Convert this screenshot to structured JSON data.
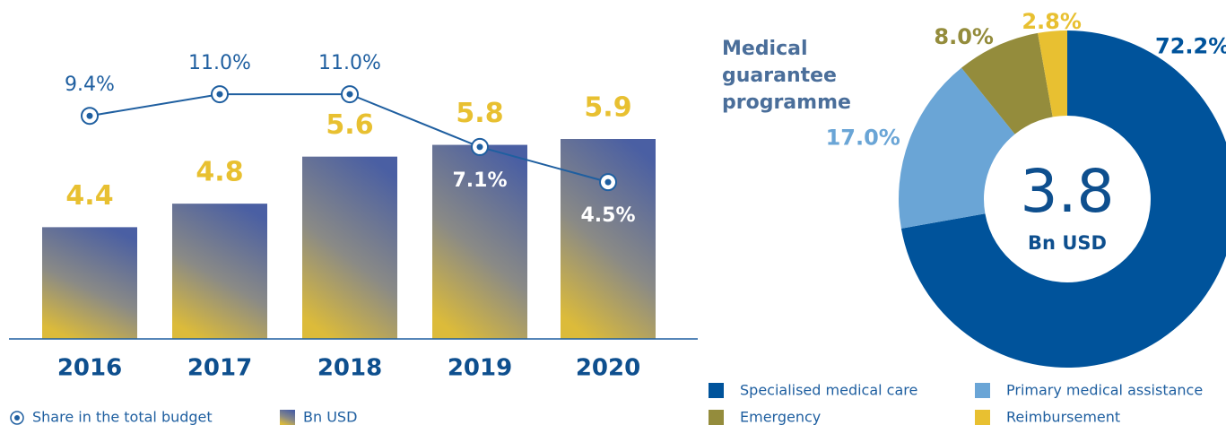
{
  "chart_data": [
    {
      "type": "bar-line",
      "categories": [
        "2016",
        "2017",
        "2018",
        "2019",
        "2020"
      ],
      "series": [
        {
          "name": "Bn USD",
          "color": "#e8c031",
          "values": [
            4.4,
            4.8,
            5.6,
            5.8,
            5.9
          ]
        },
        {
          "name": "Share in the total budget",
          "color": "#1f5fa0",
          "axis": "y2",
          "values": [
            9.4,
            11.0,
            11.0,
            7.1,
            4.5
          ],
          "value_labels": [
            "9.4%",
            "11.0%",
            "11.0%",
            "7.1%",
            "4.5%"
          ]
        }
      ],
      "ylim": [
        2.5,
        6.0
      ],
      "y2lim": [
        0,
        12
      ]
    },
    {
      "type": "donut",
      "title": "Medical guarantee programme",
      "center_value": "3.8",
      "center_label": "Bn USD",
      "categories": [
        "Specialised medical care",
        "Primary medical assistance",
        "Emergency",
        "Reimbursement"
      ],
      "values": [
        72.2,
        17.0,
        8.0,
        2.8
      ],
      "value_labels": [
        "72.2%",
        "17.0%",
        "8.0%",
        "2.8%"
      ],
      "colors": [
        "#00539b",
        "#6aa5d6",
        "#948c3c",
        "#e8c031"
      ]
    }
  ]
}
